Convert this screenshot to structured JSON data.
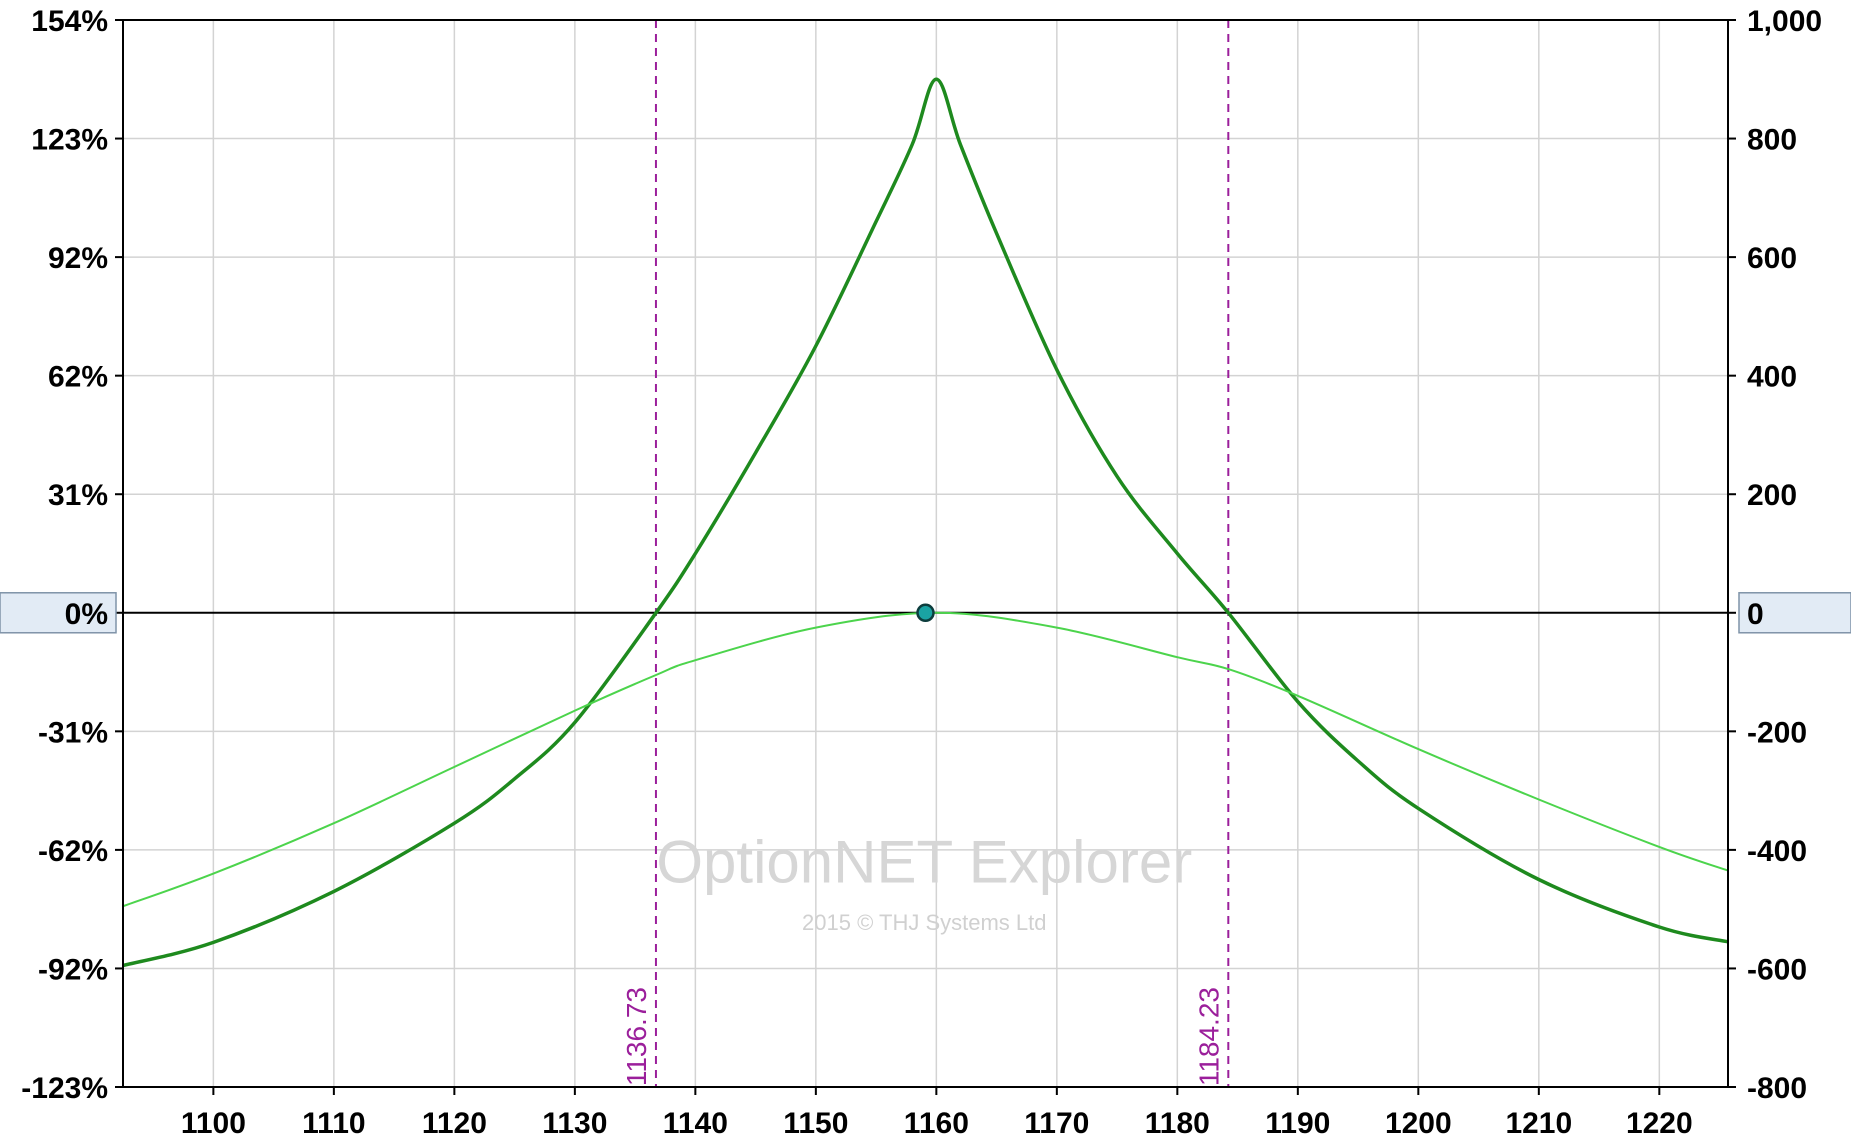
{
  "chart_data": {
    "type": "line",
    "x": {
      "min": 1092.5,
      "max": 1225.7,
      "ticks": [
        1100,
        1110,
        1120,
        1130,
        1140,
        1150,
        1160,
        1170,
        1180,
        1190,
        1200,
        1210,
        1220
      ],
      "tick_labels": [
        "1100",
        "1110",
        "1120",
        "1130",
        "1140",
        "1150",
        "1160",
        "1170",
        "1180",
        "1190",
        "1200",
        "1210",
        "1220"
      ]
    },
    "y_left": {
      "ticks": [
        -123,
        -92,
        -62,
        -31,
        0,
        31,
        62,
        92,
        123,
        154
      ],
      "tick_labels": [
        "-123%",
        "-92%",
        "-62%",
        "-31%",
        "0%",
        "31%",
        "62%",
        "92%",
        "123%",
        "154%"
      ]
    },
    "y_right": {
      "min": -800,
      "max": 1000,
      "ticks": [
        -800,
        -600,
        -400,
        -200,
        0,
        200,
        400,
        600,
        800,
        1000
      ],
      "tick_labels": [
        "-800",
        "-600",
        "-400",
        "-200",
        "0",
        "200",
        "400",
        "600",
        "800",
        "1,000"
      ]
    },
    "grid": true,
    "series": [
      {
        "color": "#1e8a1e",
        "x": [
          1092.5,
          1100,
          1110,
          1120,
          1125,
          1130,
          1136.73,
          1140,
          1145,
          1150,
          1155,
          1158,
          1160,
          1162,
          1165,
          1170,
          1175,
          1180,
          1184.23,
          1190,
          1195,
          1200,
          1210,
          1220,
          1225.7
        ],
        "y": [
          -595,
          -556,
          -470,
          -355,
          -280,
          -185,
          0,
          100,
          270,
          450,
          660,
          790,
          900,
          790,
          640,
          410,
          230,
          100,
          0,
          -150,
          -250,
          -330,
          -450,
          -530,
          -555
        ]
      },
      {
        "color": "#4cd44c",
        "x": [
          1092.5,
          1100,
          1110,
          1120,
          1130,
          1136.73,
          1140,
          1150,
          1160,
          1170,
          1180,
          1184.23,
          1190,
          1200,
          1210,
          1220,
          1225.7
        ],
        "y": [
          -495,
          -440,
          -355,
          -260,
          -165,
          -105,
          -80,
          -25,
          0,
          -25,
          -75,
          -95,
          -140,
          -230,
          -315,
          -395,
          -435
        ]
      }
    ],
    "zero_line_y": 0,
    "current_point": {
      "x": 1159.1,
      "y": 0
    },
    "breakevens": [
      {
        "x": 1136.73,
        "label": "1136.73"
      },
      {
        "x": 1184.23,
        "label": "1184.23"
      }
    ],
    "breakeven_color": "#9b1f9b",
    "watermark": {
      "title": "OptionNET Explorer",
      "subtitle": "2015 © THJ Systems Ltd"
    },
    "colors": {
      "grid": "#d3d3d3",
      "frame": "#000000",
      "zero_label_bg": "#e2ebf5",
      "zero_label_border": "#7f93a8",
      "current_point_fill": "#1aa3a3"
    }
  }
}
